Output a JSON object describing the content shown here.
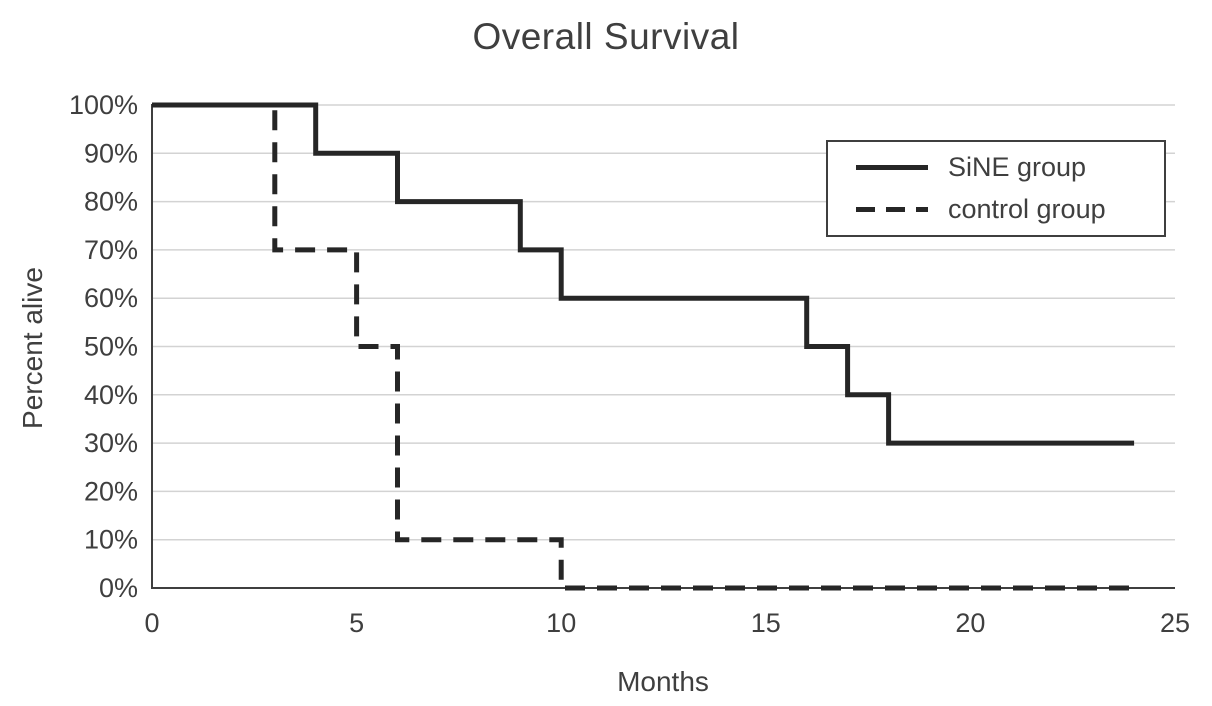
{
  "colors": {
    "background": "#ffffff",
    "grid": "#d3d3d3",
    "axis": "#3f3f3f",
    "text": "#3f3f3f",
    "line": "#262626"
  },
  "chart_data": {
    "type": "line",
    "subtype": "kaplan-meier-step",
    "title": "Overall Survival",
    "xlabel": "Months",
    "ylabel": "Percent alive",
    "xlim": [
      0,
      25
    ],
    "ylim": [
      0,
      100
    ],
    "x_ticks": [
      0,
      5,
      10,
      15,
      20,
      25
    ],
    "y_ticks": [
      0,
      10,
      20,
      30,
      40,
      50,
      60,
      70,
      80,
      90,
      100
    ],
    "y_tick_suffix": "%",
    "grid": "horizontal",
    "legend_position": "top-right",
    "series": [
      {
        "name": "SiNE group",
        "line_style": "solid",
        "color": "#262626",
        "points": [
          [
            0,
            100
          ],
          [
            4,
            100
          ],
          [
            4,
            90
          ],
          [
            6,
            90
          ],
          [
            6,
            80
          ],
          [
            9,
            80
          ],
          [
            9,
            70
          ],
          [
            10,
            70
          ],
          [
            10,
            60
          ],
          [
            16,
            60
          ],
          [
            16,
            50
          ],
          [
            17,
            50
          ],
          [
            17,
            40
          ],
          [
            18,
            40
          ],
          [
            18,
            30
          ],
          [
            24,
            30
          ]
        ]
      },
      {
        "name": "control group",
        "line_style": "dashed",
        "color": "#262626",
        "points": [
          [
            0,
            100
          ],
          [
            3,
            100
          ],
          [
            3,
            70
          ],
          [
            5,
            70
          ],
          [
            5,
            50
          ],
          [
            6,
            50
          ],
          [
            6,
            10
          ],
          [
            10,
            10
          ],
          [
            10,
            0
          ],
          [
            24,
            0
          ]
        ]
      }
    ]
  }
}
